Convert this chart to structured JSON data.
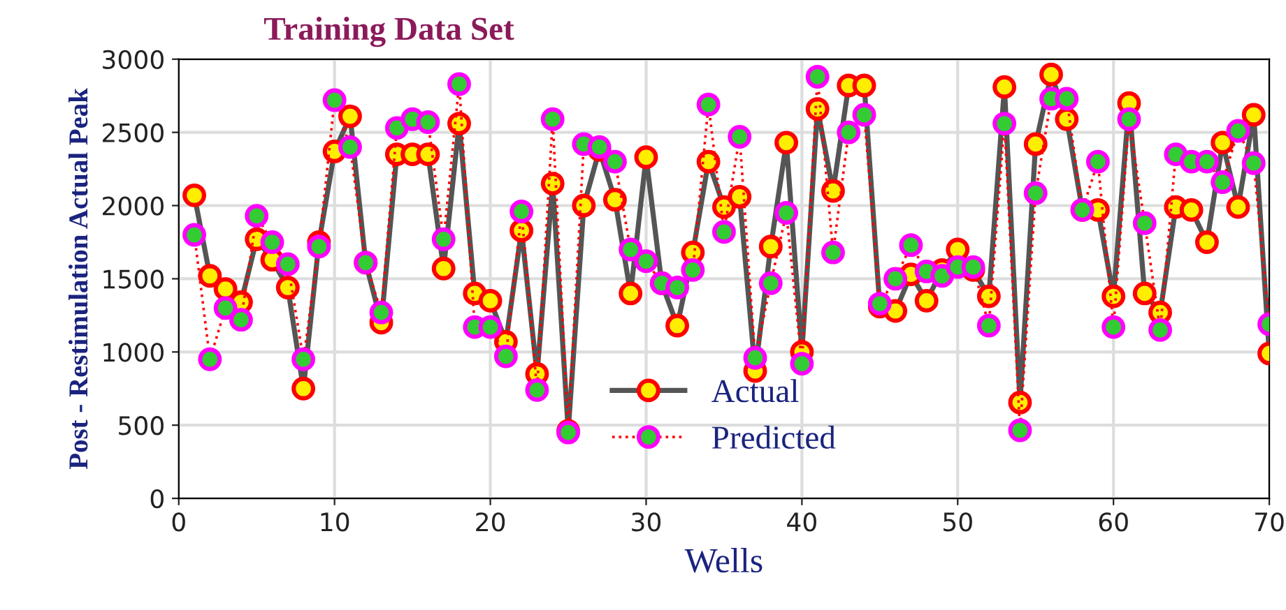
{
  "chart_data": {
    "type": "line",
    "title": "Training Data Set",
    "xlabel": "Wells",
    "ylabel": "Post - Restimulation Actual Peak",
    "x": [
      1,
      2,
      3,
      4,
      5,
      6,
      7,
      8,
      9,
      10,
      11,
      12,
      13,
      14,
      15,
      16,
      17,
      18,
      19,
      20,
      21,
      22,
      23,
      24,
      25,
      26,
      27,
      28,
      29,
      30,
      31,
      32,
      33,
      34,
      35,
      36,
      37,
      38,
      39,
      40,
      41,
      42,
      43,
      44,
      45,
      46,
      47,
      48,
      49,
      50,
      51,
      52,
      53,
      54,
      55,
      56,
      57,
      58,
      59,
      60,
      61,
      62,
      63,
      64,
      65,
      66,
      67,
      68,
      69,
      70
    ],
    "series": [
      {
        "name": "Actual",
        "color": "#ff0000",
        "line_style": "solid",
        "values": [
          2070,
          1520,
          1430,
          1340,
          1770,
          1630,
          1440,
          750,
          1750,
          2370,
          2610,
          1610,
          1200,
          2350,
          2350,
          2350,
          1570,
          2560,
          1400,
          1350,
          1070,
          1830,
          850,
          2150,
          460,
          2000,
          2380,
          2040,
          1400,
          2330,
          1470,
          1180,
          1680,
          2300,
          1990,
          2060,
          870,
          1720,
          2430,
          1000,
          2660,
          2100,
          2820,
          2820,
          1310,
          1280,
          1530,
          1350,
          1560,
          1700,
          1560,
          1380,
          2810,
          655,
          2420,
          2895,
          2590,
          1970,
          1970,
          1380,
          2700,
          1400,
          1270,
          1990,
          1970,
          1750,
          2430,
          1990,
          2620,
          990
        ]
      },
      {
        "name": "Predicted",
        "color": "#ff00ff",
        "line_style": "dotted",
        "values": [
          1800,
          950,
          1300,
          1220,
          1930,
          1750,
          1600,
          950,
          1720,
          2720,
          2400,
          1610,
          1270,
          2530,
          2590,
          2570,
          1770,
          2830,
          1170,
          1170,
          970,
          1960,
          740,
          2590,
          450,
          2420,
          2400,
          2300,
          1700,
          1620,
          1470,
          1440,
          1560,
          2690,
          1820,
          2470,
          960,
          1470,
          1950,
          920,
          2880,
          1680,
          2500,
          2620,
          1330,
          1500,
          1730,
          1550,
          1520,
          1580,
          1580,
          1180,
          2560,
          465,
          2085,
          2730,
          2730,
          1970,
          2300,
          1170,
          2590,
          1880,
          1150,
          2350,
          2300,
          2300,
          2160,
          2510,
          2290,
          1190
        ]
      }
    ],
    "xlim": [
      0,
      70
    ],
    "ylim": [
      0,
      3000
    ],
    "xticks": [
      0,
      10,
      20,
      30,
      40,
      50,
      60,
      70
    ],
    "yticks": [
      0,
      500,
      1000,
      1500,
      2000,
      2500,
      3000
    ],
    "grid": true,
    "legend": "bottom",
    "marker": "circle"
  }
}
